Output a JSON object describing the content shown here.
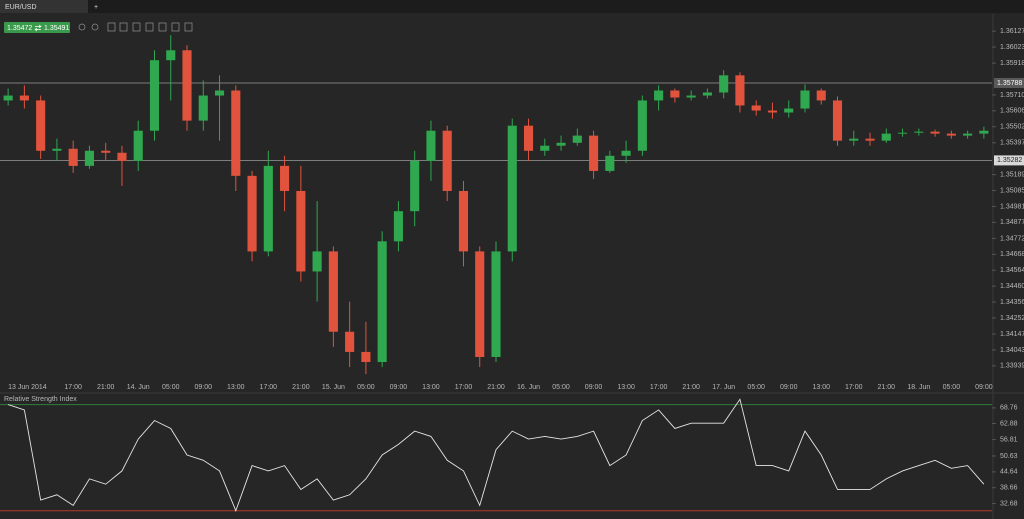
{
  "tab": "EUR/USD",
  "quote": {
    "bid": 1.35472,
    "ask": 1.35491
  },
  "chart_data": [
    {
      "type": "candlestick",
      "categories": [
        "13 Jun 2014",
        null,
        null,
        null,
        "17:00",
        null,
        "21:00",
        null,
        "14. Jun",
        null,
        "05:00",
        null,
        "09:00",
        null,
        "13:00",
        null,
        "17:00",
        null,
        "21:00",
        null,
        "15. Jun",
        null,
        "05:00",
        null,
        "09:00",
        null,
        "13:00",
        null,
        "17:00",
        null,
        "21:00",
        null,
        "16. Jun",
        null,
        "05:00",
        null,
        "09:00",
        null,
        "13:00",
        null,
        "17:00",
        null,
        "21:00",
        null,
        "17. Jun",
        null,
        "05:00",
        null,
        "09:00",
        null,
        "13:00",
        null,
        "17:00",
        null,
        "21:00",
        null,
        "18. Jun",
        null,
        "05:00",
        null,
        "09:00"
      ],
      "open": [
        1.35674,
        1.35706,
        1.35674,
        1.35345,
        1.35358,
        1.35246,
        1.35345,
        1.35332,
        1.35279,
        1.35476,
        1.35937,
        1.36002,
        1.35542,
        1.35706,
        1.35739,
        1.35181,
        1.34687,
        1.35246,
        1.35082,
        1.34556,
        1.34687,
        1.34162,
        1.3403,
        1.33964,
        1.34753,
        1.3495,
        1.35279,
        1.35476,
        1.35082,
        1.34687,
        1.33997,
        1.34687,
        1.35509,
        1.35345,
        1.35378,
        1.35397,
        1.35444,
        1.35213,
        1.35312,
        1.35345,
        1.35674,
        1.35739,
        1.35693,
        1.35706,
        1.35726,
        1.35838,
        1.35641,
        1.35608,
        1.35595,
        1.35621,
        1.35739,
        1.35674,
        1.35411,
        1.35424,
        1.35411,
        1.35457,
        1.35463,
        1.3547,
        1.35457,
        1.35444,
        1.35457
      ],
      "high": [
        1.35752,
        1.35772,
        1.35706,
        1.35424,
        1.35411,
        1.35378,
        1.35397,
        1.35378,
        1.35542,
        1.36002,
        1.36101,
        1.36035,
        1.35805,
        1.35838,
        1.35772,
        1.35213,
        1.35345,
        1.35312,
        1.35246,
        1.35016,
        1.3472,
        1.34359,
        1.34227,
        1.34819,
        1.35016,
        1.35345,
        1.35542,
        1.35509,
        1.35148,
        1.3472,
        1.34753,
        1.35555,
        1.35555,
        1.35424,
        1.35444,
        1.3549,
        1.35476,
        1.35345,
        1.35411,
        1.35706,
        1.35772,
        1.35752,
        1.35739,
        1.35752,
        1.35871,
        1.35858,
        1.35674,
        1.3566,
        1.35674,
        1.35779,
        1.35752,
        1.357,
        1.35476,
        1.35463,
        1.3549,
        1.3549,
        1.3549,
        1.35483,
        1.35476,
        1.35476,
        1.35503
      ],
      "low": [
        1.35641,
        1.35621,
        1.35292,
        1.35279,
        1.352,
        1.35227,
        1.35279,
        1.35115,
        1.35213,
        1.35411,
        1.35674,
        1.35476,
        1.35476,
        1.35411,
        1.35082,
        1.34622,
        1.34655,
        1.3495,
        1.3449,
        1.34359,
        1.34063,
        1.33931,
        1.33885,
        1.33931,
        1.34687,
        1.34852,
        1.35148,
        1.35016,
        1.34589,
        1.33931,
        1.33964,
        1.34622,
        1.35279,
        1.35312,
        1.35345,
        1.35378,
        1.35161,
        1.352,
        1.35266,
        1.35312,
        1.35608,
        1.3566,
        1.35674,
        1.35687,
        1.35687,
        1.35595,
        1.35575,
        1.35555,
        1.35562,
        1.35595,
        1.35647,
        1.35378,
        1.35378,
        1.35378,
        1.35397,
        1.35437,
        1.35444,
        1.35437,
        1.35424,
        1.35424,
        1.35424
      ],
      "close": [
        1.35706,
        1.35674,
        1.35345,
        1.35358,
        1.35246,
        1.35345,
        1.35332,
        1.35279,
        1.35476,
        1.35937,
        1.36002,
        1.35542,
        1.35706,
        1.35739,
        1.35181,
        1.34687,
        1.35246,
        1.35082,
        1.34556,
        1.34687,
        1.34162,
        1.3403,
        1.33964,
        1.34753,
        1.3495,
        1.35279,
        1.35476,
        1.35082,
        1.34687,
        1.33997,
        1.34687,
        1.35509,
        1.35345,
        1.35378,
        1.35397,
        1.35444,
        1.35213,
        1.35312,
        1.35345,
        1.35674,
        1.35739,
        1.35693,
        1.35706,
        1.35726,
        1.35838,
        1.35641,
        1.35608,
        1.35595,
        1.35621,
        1.35739,
        1.35674,
        1.35411,
        1.35424,
        1.35411,
        1.35457,
        1.35463,
        1.3547,
        1.35457,
        1.35444,
        1.35457,
        1.35476
      ],
      "up_color": "#2fa84f",
      "down_color": "#e2533d",
      "ylim": [
        1.33768,
        1.36239
      ],
      "yticks": [
        1.36127,
        1.36023,
        1.35918,
        {
          "value": 1.3571,
          "label": "1.35710"
        },
        1.35606,
        1.35502,
        1.35397,
        1.35189,
        1.35085,
        1.34981,
        1.34877,
        1.34772,
        1.34668,
        1.34564,
        {
          "value": 1.3446,
          "label": "1.34460"
        },
        1.34356,
        1.34252,
        1.34147,
        1.34043,
        1.33939
      ],
      "hlines": [
        1.35788,
        1.35282
      ]
    },
    {
      "type": "line",
      "title": "Relative Strength Index",
      "color": "#e6e6e6",
      "values": [
        70,
        68,
        34,
        36,
        32,
        42,
        40,
        45,
        57,
        64,
        61,
        51,
        49,
        45,
        30,
        47,
        45,
        47,
        38,
        42,
        34,
        36,
        42,
        51,
        55,
        60,
        58,
        49,
        45,
        32,
        53,
        60,
        57,
        58,
        57,
        58,
        60,
        47,
        51,
        64,
        68,
        61,
        63,
        63,
        63,
        72,
        47,
        47,
        45,
        60,
        51,
        38,
        38,
        38,
        42,
        45,
        47,
        49,
        46,
        47,
        40
      ],
      "ylim": [
        28,
        74
      ],
      "yticks": [
        68.76,
        62.88,
        56.81,
        50.63,
        44.64,
        38.66,
        32.68
      ],
      "levels": [
        70,
        30
      ],
      "level_colors": [
        "#2f7d3a",
        "#b03a2a"
      ]
    }
  ]
}
